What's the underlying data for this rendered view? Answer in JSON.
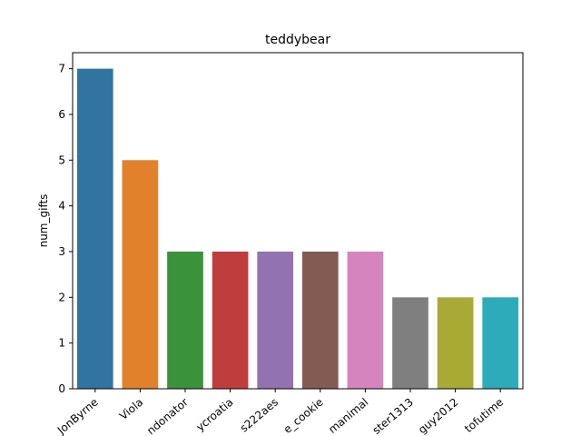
{
  "chart_data": {
    "type": "bar",
    "title": "teddybear",
    "xlabel": "",
    "ylabel": "num_gifts",
    "categories": [
      "JonByrne",
      "Viola",
      "ndonator",
      "ycroatia",
      "s222aes",
      "e_cookie",
      "manimal",
      "ster1313",
      "guy2012",
      "tofutime"
    ],
    "values": [
      7,
      5,
      3,
      3,
      3,
      3,
      3,
      2,
      2,
      2
    ],
    "colors": [
      "#3274a1",
      "#e1812c",
      "#3a923a",
      "#c03d3e",
      "#9372b2",
      "#845b53",
      "#d684bd",
      "#7f7f7f",
      "#a9aa35",
      "#2eabb8"
    ],
    "ylim": [
      0,
      7.35
    ],
    "yticks": [
      0,
      1,
      2,
      3,
      4,
      5,
      6,
      7
    ],
    "grid": false,
    "legend": "none"
  }
}
